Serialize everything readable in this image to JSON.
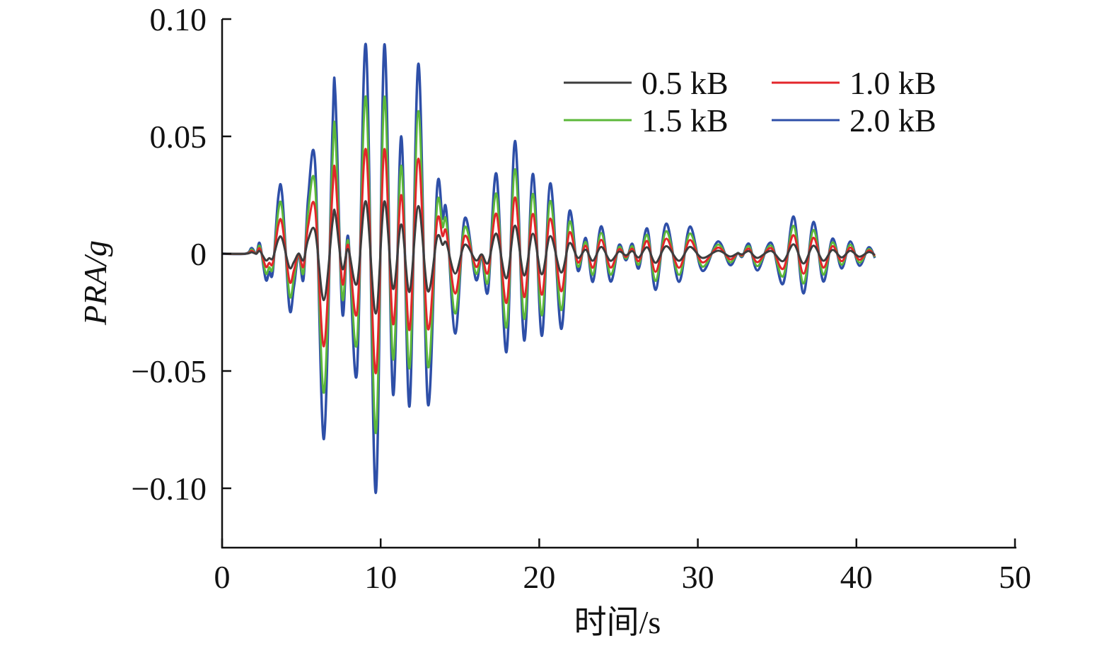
{
  "chart_data": {
    "type": "line",
    "title": "",
    "xlabel": "时间/s",
    "ylabel": "PRA/g",
    "xlim": [
      0,
      50
    ],
    "ylim": [
      -0.125,
      0.1
    ],
    "xticks": [
      0,
      10,
      20,
      30,
      40,
      50
    ],
    "xtick_labels": [
      "0",
      "10",
      "20",
      "30",
      "40",
      "50"
    ],
    "yticks": [
      0.1,
      0.05,
      0,
      -0.05,
      -0.1
    ],
    "ytick_labels": [
      "0.10",
      "0.05",
      "0",
      "−0.05",
      "−0.10"
    ],
    "grid": false,
    "legend_position": "top-right",
    "x": [
      0,
      1.49,
      1.86,
      2.16,
      2.38,
      2.75,
      2.97,
      3.2,
      3.54,
      3.79,
      4.24,
      4.53,
      4.83,
      5.13,
      5.43,
      5.87,
      6.42,
      6.96,
      7.14,
      7.58,
      7.95,
      8.5,
      9.07,
      9.69,
      10.23,
      10.78,
      11.3,
      11.82,
      12.38,
      12.98,
      13.56,
      13.9,
      14.15,
      14.7,
      15.3,
      16.0,
      16.37,
      16.77,
      17.3,
      17.93,
      18.47,
      19.05,
      19.6,
      20.16,
      20.7,
      21.38,
      21.9,
      22.44,
      22.93,
      23.38,
      23.91,
      24.49,
      25.03,
      25.47,
      25.87,
      26.27,
      26.81,
      27.34,
      28.01,
      28.81,
      29.5,
      30.29,
      31.27,
      32.02,
      32.5,
      32.8,
      33.23,
      33.76,
      34.61,
      35.37,
      36.04,
      36.66,
      37.29,
      37.91,
      38.49,
      39.07,
      39.61,
      40.19,
      40.77,
      41.17
    ],
    "series": [
      {
        "name": "0.5 kB",
        "color": "#3d3d3d",
        "values": [
          0,
          0,
          0.0006,
          0,
          0.0011,
          -0.0028,
          -0.0019,
          -0.0019,
          0.006,
          0.0063,
          -0.0058,
          -0.0035,
          0,
          -0.0028,
          0.006,
          0.0095,
          -0.0198,
          0.013,
          0.017,
          -0.0063,
          0.0019,
          -0.0128,
          0.0223,
          -0.0255,
          0.0223,
          -0.015,
          0.0125,
          -0.0163,
          0.0203,
          -0.016,
          0.007,
          0.0038,
          0.0045,
          -0.0085,
          0.0038,
          -0.0028,
          -0.0003,
          -0.004,
          0.0085,
          -0.0105,
          0.012,
          -0.0093,
          0.0085,
          -0.0088,
          0.0075,
          -0.008,
          0.0045,
          -0.0018,
          0.0017,
          -0.003,
          0.0029,
          -0.003,
          0.0009,
          -0.0007,
          0.0011,
          -0.0016,
          0.0027,
          -0.0039,
          0.0032,
          -0.003,
          0.0029,
          -0.0018,
          0.0013,
          -0.0012,
          0.0001,
          -0.0003,
          0.0011,
          -0.0018,
          0.0012,
          -0.0032,
          0.004,
          -0.0042,
          0.0034,
          -0.003,
          0.0016,
          -0.0016,
          0.0013,
          -0.0013,
          0.0007,
          -0.0005
        ]
      },
      {
        "name": "1.0 kB",
        "color": "#e3262b",
        "values": [
          0,
          0,
          0.0012,
          0,
          0.0022,
          -0.0055,
          -0.0039,
          -0.0039,
          0.012,
          0.0125,
          -0.0115,
          -0.007,
          0,
          -0.0055,
          0.012,
          0.019,
          -0.0395,
          0.026,
          0.034,
          -0.0125,
          0.0037,
          -0.0255,
          0.0445,
          -0.051,
          0.0445,
          -0.03,
          0.025,
          -0.0325,
          0.0405,
          -0.032,
          0.014,
          0.0075,
          0.009,
          -0.017,
          0.0075,
          -0.0055,
          -0.0005,
          -0.008,
          0.017,
          -0.021,
          0.024,
          -0.0185,
          0.017,
          -0.0175,
          0.015,
          -0.016,
          0.009,
          -0.0037,
          0.0034,
          -0.006,
          0.0059,
          -0.0059,
          0.0019,
          -0.0014,
          0.0021,
          -0.0032,
          0.0054,
          -0.0077,
          0.0064,
          -0.006,
          0.0058,
          -0.0037,
          0.0026,
          -0.0024,
          0.0001,
          -0.0007,
          0.0021,
          -0.0036,
          0.0024,
          -0.0065,
          0.0079,
          -0.0085,
          0.0068,
          -0.0059,
          0.0032,
          -0.0032,
          0.0026,
          -0.0026,
          0.0014,
          -0.0009
        ]
      },
      {
        "name": "1.5 kB",
        "color": "#5cb83a",
        "values": [
          0,
          0,
          0.0018,
          0,
          0.0032,
          -0.0083,
          -0.0058,
          -0.0058,
          0.018,
          0.0188,
          -0.0173,
          -0.0105,
          0,
          -0.0083,
          0.018,
          0.0285,
          -0.0593,
          0.039,
          0.051,
          -0.0188,
          0.0056,
          -0.0383,
          0.0668,
          -0.0765,
          0.0668,
          -0.045,
          0.0375,
          -0.0488,
          0.0608,
          -0.048,
          0.021,
          0.0113,
          0.0135,
          -0.0255,
          0.0113,
          -0.0083,
          -0.0008,
          -0.012,
          0.0255,
          -0.0315,
          0.036,
          -0.0278,
          0.0255,
          -0.0263,
          0.0225,
          -0.024,
          0.0135,
          -0.0055,
          0.005,
          -0.009,
          0.0088,
          -0.0089,
          0.0028,
          -0.0021,
          0.0032,
          -0.0047,
          0.008,
          -0.0116,
          0.0096,
          -0.009,
          0.0086,
          -0.0055,
          0.0039,
          -0.0036,
          0.0002,
          -0.001,
          0.0032,
          -0.0053,
          0.0035,
          -0.0097,
          0.0119,
          -0.0127,
          0.0101,
          -0.0089,
          0.0048,
          -0.0047,
          0.0039,
          -0.0038,
          0.002,
          -0.0014
        ]
      },
      {
        "name": "2.0 kB",
        "color": "#2e4fa8",
        "values": [
          0,
          0,
          0.0024,
          0,
          0.0043,
          -0.011,
          -0.0077,
          -0.0077,
          0.024,
          0.025,
          -0.023,
          -0.014,
          0,
          -0.011,
          0.024,
          0.038,
          -0.079,
          0.052,
          0.068,
          -0.025,
          0.0074,
          -0.051,
          0.089,
          -0.102,
          0.089,
          -0.06,
          0.05,
          -0.065,
          0.081,
          -0.064,
          0.028,
          0.015,
          0.018,
          -0.034,
          0.015,
          -0.011,
          -0.001,
          -0.016,
          0.034,
          -0.042,
          0.048,
          -0.037,
          0.034,
          -0.035,
          0.03,
          -0.032,
          0.018,
          -0.0073,
          0.0067,
          -0.012,
          0.0117,
          -0.0118,
          0.0037,
          -0.0028,
          0.0042,
          -0.0063,
          0.0107,
          -0.0154,
          0.0128,
          -0.012,
          0.0115,
          -0.0073,
          0.0052,
          -0.0048,
          0.0002,
          -0.0013,
          0.0042,
          -0.0071,
          0.0047,
          -0.0129,
          0.0158,
          -0.0169,
          0.0135,
          -0.0118,
          0.0064,
          -0.0063,
          0.0052,
          -0.0051,
          0.0027,
          -0.0018
        ]
      }
    ]
  }
}
